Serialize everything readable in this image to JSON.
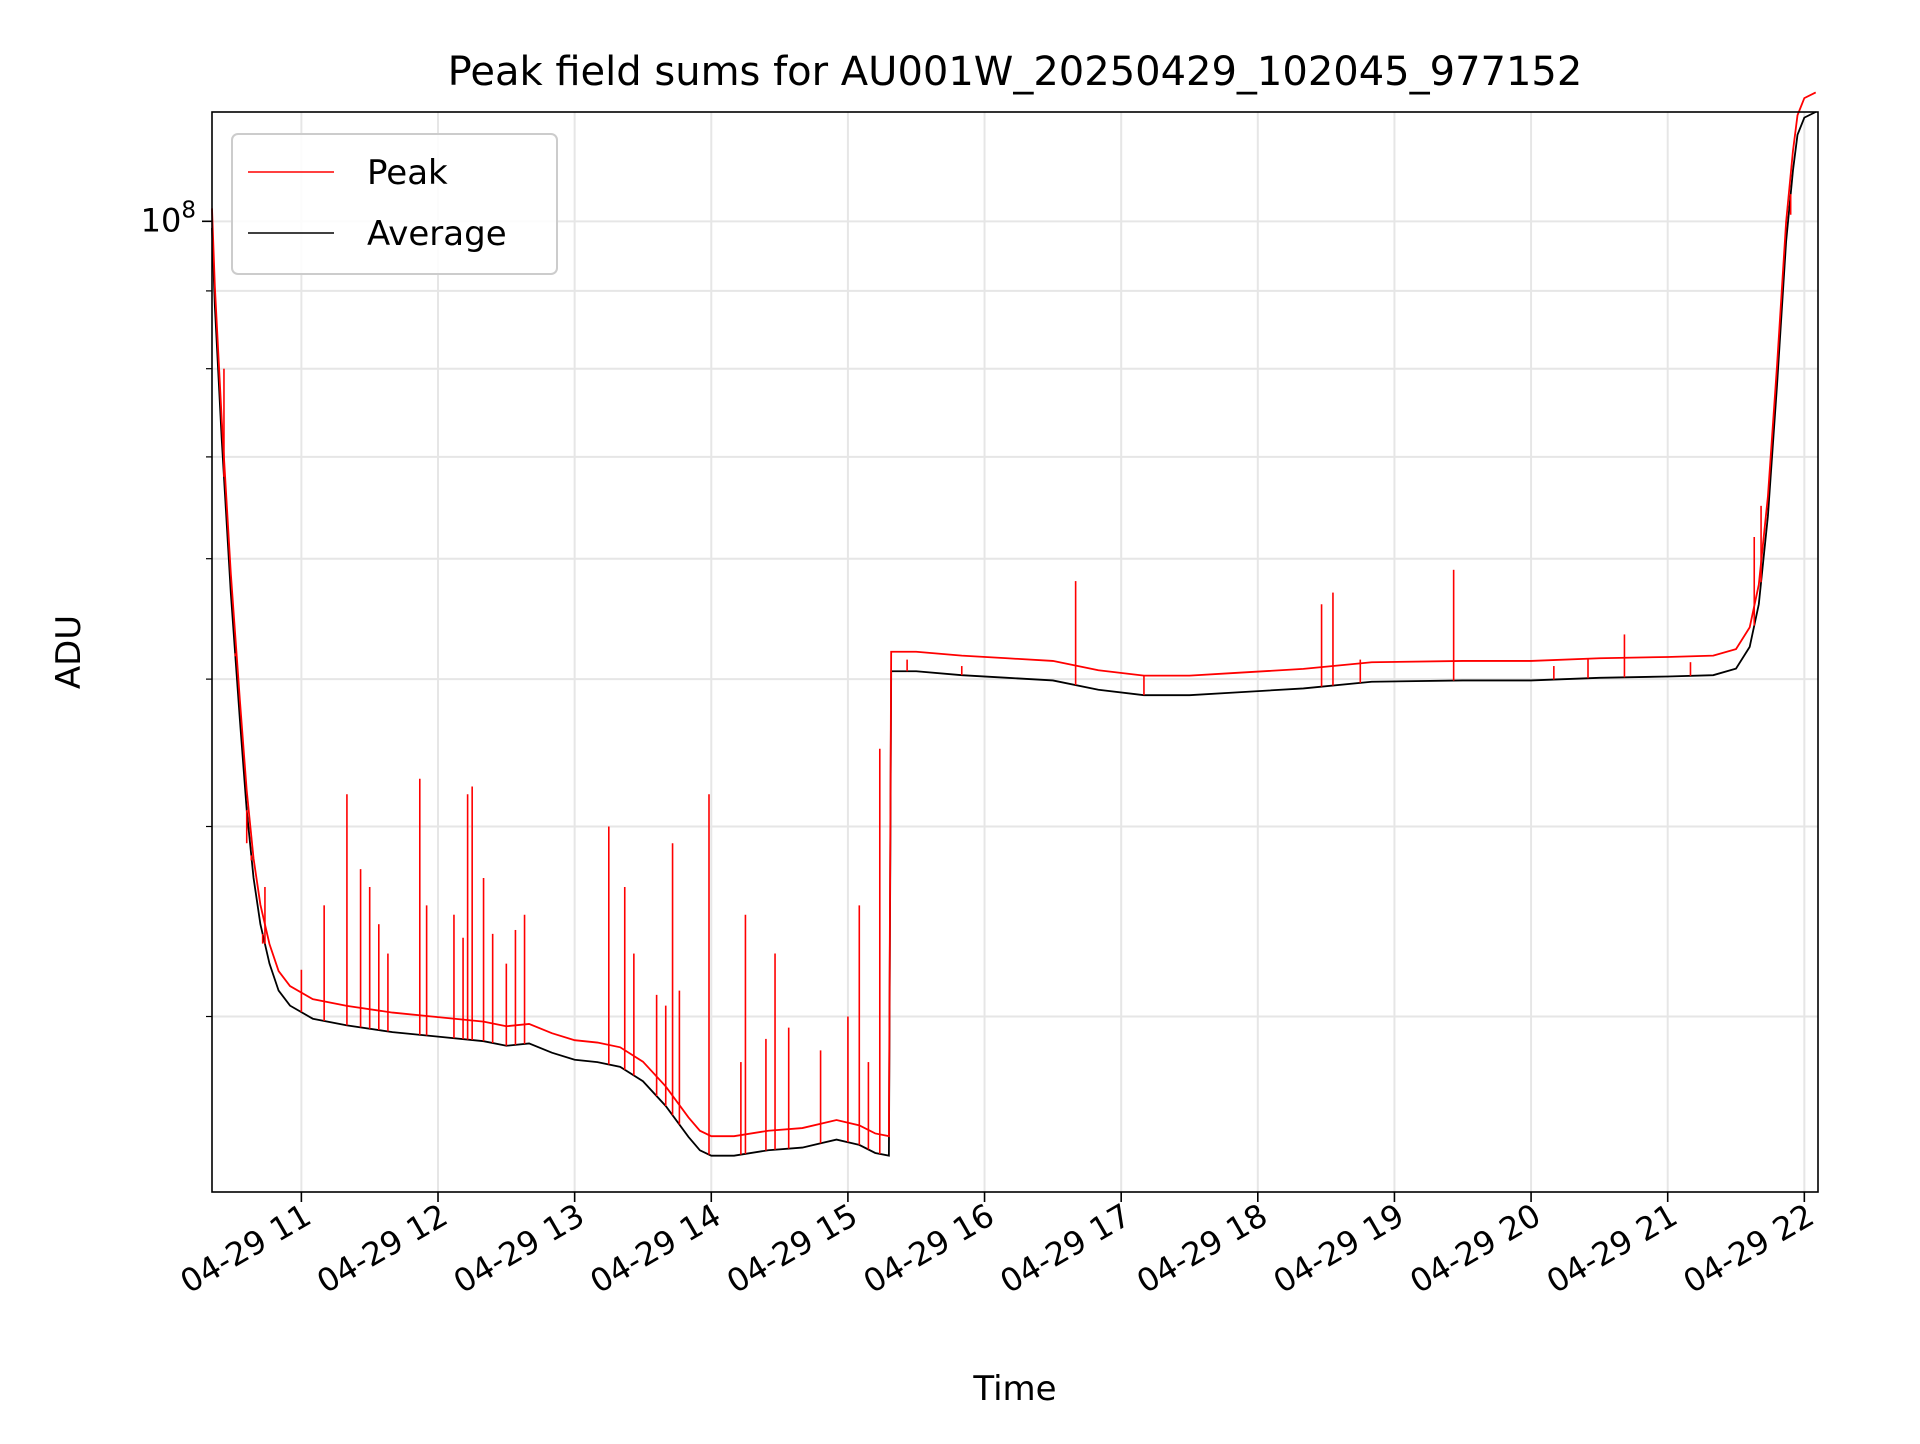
{
  "chart_data": {
    "type": "line",
    "title": "Peak field sums for AU001W_20250429_102045_977152",
    "xlabel": "Time",
    "ylabel": "ADU",
    "y_scale": "log",
    "ylim": [
      23000000,
      118000000
    ],
    "xlim": [
      "2025-04-29 10:20:45",
      "2025-04-29 22:06:00"
    ],
    "x_ticks": [
      {
        "t": "2025-04-29 11:00",
        "label": "04-29 11"
      },
      {
        "t": "2025-04-29 12:00",
        "label": "04-29 12"
      },
      {
        "t": "2025-04-29 13:00",
        "label": "04-29 13"
      },
      {
        "t": "2025-04-29 14:00",
        "label": "04-29 14"
      },
      {
        "t": "2025-04-29 15:00",
        "label": "04-29 15"
      },
      {
        "t": "2025-04-29 16:00",
        "label": "04-29 16"
      },
      {
        "t": "2025-04-29 17:00",
        "label": "04-29 17"
      },
      {
        "t": "2025-04-29 18:00",
        "label": "04-29 18"
      },
      {
        "t": "2025-04-29 19:00",
        "label": "04-29 19"
      },
      {
        "t": "2025-04-29 20:00",
        "label": "04-29 20"
      },
      {
        "t": "2025-04-29 21:00",
        "label": "04-29 21"
      },
      {
        "t": "2025-04-29 22:00",
        "label": "04-29 22"
      }
    ],
    "y_major_ticks": [
      {
        "value": 100000000,
        "label_base": "10",
        "label_exp": "8"
      }
    ],
    "y_minor_ticks": [
      30000000,
      40000000,
      50000000,
      60000000,
      70000000,
      80000000,
      90000000
    ],
    "grid": true,
    "legend": {
      "position": "top-left",
      "entries": [
        {
          "name": "Peak",
          "color": "#ff0000"
        },
        {
          "name": "Average",
          "color": "#000000"
        }
      ]
    },
    "series": [
      {
        "name": "Average",
        "color": "#000000",
        "points": [
          [
            "2025-04-29 10:20:45",
            99000000
          ],
          [
            "2025-04-29 10:22:00",
            88000000
          ],
          [
            "2025-04-29 10:25:00",
            72000000
          ],
          [
            "2025-04-29 10:29:00",
            57000000
          ],
          [
            "2025-04-29 10:33:00",
            47000000
          ],
          [
            "2025-04-29 10:36:00",
            41000000
          ],
          [
            "2025-04-29 10:39:00",
            37000000
          ],
          [
            "2025-04-29 10:42:00",
            34500000
          ],
          [
            "2025-04-29 10:46:00",
            32500000
          ],
          [
            "2025-04-29 10:50:00",
            31200000
          ],
          [
            "2025-04-29 10:55:00",
            30500000
          ],
          [
            "2025-04-29 11:05:00",
            29900000
          ],
          [
            "2025-04-29 11:20:00",
            29600000
          ],
          [
            "2025-04-29 11:40:00",
            29300000
          ],
          [
            "2025-04-29 12:00:00",
            29100000
          ],
          [
            "2025-04-29 12:20:00",
            28900000
          ],
          [
            "2025-04-29 12:30:00",
            28700000
          ],
          [
            "2025-04-29 12:40:00",
            28800000
          ],
          [
            "2025-04-29 12:50:00",
            28400000
          ],
          [
            "2025-04-29 13:00:00",
            28100000
          ],
          [
            "2025-04-29 13:10:00",
            28000000
          ],
          [
            "2025-04-29 13:20:00",
            27800000
          ],
          [
            "2025-04-29 13:30:00",
            27200000
          ],
          [
            "2025-04-29 13:40:00",
            26200000
          ],
          [
            "2025-04-29 13:50:00",
            25000000
          ],
          [
            "2025-04-29 13:55:00",
            24500000
          ],
          [
            "2025-04-29 14:00:00",
            24300000
          ],
          [
            "2025-04-29 14:10:00",
            24300000
          ],
          [
            "2025-04-29 14:25:00",
            24500000
          ],
          [
            "2025-04-29 14:40:00",
            24600000
          ],
          [
            "2025-04-29 14:55:00",
            24900000
          ],
          [
            "2025-04-29 15:05:00",
            24700000
          ],
          [
            "2025-04-29 15:12:00",
            24400000
          ],
          [
            "2025-04-29 15:18:00",
            24300000
          ],
          [
            "2025-04-29 15:19:00",
            50600000
          ],
          [
            "2025-04-29 15:30:00",
            50600000
          ],
          [
            "2025-04-29 15:50:00",
            50300000
          ],
          [
            "2025-04-29 16:10:00",
            50100000
          ],
          [
            "2025-04-29 16:30:00",
            49900000
          ],
          [
            "2025-04-29 16:50:00",
            49200000
          ],
          [
            "2025-04-29 17:10:00",
            48800000
          ],
          [
            "2025-04-29 17:30:00",
            48800000
          ],
          [
            "2025-04-29 17:50:00",
            49000000
          ],
          [
            "2025-04-29 18:20:00",
            49300000
          ],
          [
            "2025-04-29 18:50:00",
            49800000
          ],
          [
            "2025-04-29 19:30:00",
            49900000
          ],
          [
            "2025-04-29 20:00:00",
            49900000
          ],
          [
            "2025-04-29 20:30:00",
            50100000
          ],
          [
            "2025-04-29 21:00:00",
            50200000
          ],
          [
            "2025-04-29 21:20:00",
            50300000
          ],
          [
            "2025-04-29 21:30:00",
            50800000
          ],
          [
            "2025-04-29 21:36:00",
            52500000
          ],
          [
            "2025-04-29 21:40:00",
            56000000
          ],
          [
            "2025-04-29 21:44:00",
            64000000
          ],
          [
            "2025-04-29 21:48:00",
            78000000
          ],
          [
            "2025-04-29 21:52:00",
            97000000
          ],
          [
            "2025-04-29 21:55:00",
            108000000
          ],
          [
            "2025-04-29 21:57:00",
            114000000
          ],
          [
            "2025-04-29 22:00:00",
            117000000
          ],
          [
            "2025-04-29 22:05:00",
            118000000
          ]
        ]
      },
      {
        "name": "Peak",
        "color": "#ff0000",
        "baseline_offset": 1.03,
        "spikes": [
          [
            "2025-04-29 10:26:00",
            80000000
          ],
          [
            "2025-04-29 10:31:00",
            52000000
          ],
          [
            "2025-04-29 10:36:00",
            39000000
          ],
          [
            "2025-04-29 10:38:00",
            38000000
          ],
          [
            "2025-04-29 10:44:00",
            36500000
          ],
          [
            "2025-04-29 11:10:00",
            35500000
          ],
          [
            "2025-04-29 11:20:00",
            42000000
          ],
          [
            "2025-04-29 11:26:00",
            37500000
          ],
          [
            "2025-04-29 11:30:00",
            36500000
          ],
          [
            "2025-04-29 11:38:00",
            33000000
          ],
          [
            "2025-04-29 11:52:00",
            43000000
          ],
          [
            "2025-04-29 11:55:00",
            35500000
          ],
          [
            "2025-04-29 12:07:00",
            35000000
          ],
          [
            "2025-04-29 12:13:00",
            42000000
          ],
          [
            "2025-04-29 12:15:00",
            42500000
          ],
          [
            "2025-04-29 12:20:00",
            37000000
          ],
          [
            "2025-04-29 12:38:00",
            35000000
          ],
          [
            "2025-04-29 13:15:00",
            40000000
          ],
          [
            "2025-04-29 13:22:00",
            36500000
          ],
          [
            "2025-04-29 13:43:00",
            39000000
          ],
          [
            "2025-04-29 13:59:00",
            42000000
          ],
          [
            "2025-04-29 14:15:00",
            35000000
          ],
          [
            "2025-04-29 14:28:00",
            33000000
          ],
          [
            "2025-04-29 15:05:00",
            35500000
          ],
          [
            "2025-04-29 15:14:00",
            45000000
          ],
          [
            "2025-04-29 16:40:00",
            58000000
          ],
          [
            "2025-04-29 18:28:00",
            56000000
          ],
          [
            "2025-04-29 18:33:00",
            57000000
          ],
          [
            "2025-04-29 19:26:00",
            59000000
          ],
          [
            "2025-04-29 20:41:00",
            53500000
          ],
          [
            "2025-04-29 21:38:00",
            62000000
          ],
          [
            "2025-04-29 21:41:00",
            65000000
          ],
          [
            "2025-04-29 21:54:00",
            101000000
          ],
          [
            "2025-04-29 10:43:00",
            33500000
          ],
          [
            "2025-04-29 11:00:00",
            32200000
          ],
          [
            "2025-04-29 11:34:00",
            34500000
          ],
          [
            "2025-04-29 12:11:00",
            33800000
          ],
          [
            "2025-04-29 12:24:00",
            34000000
          ],
          [
            "2025-04-29 12:30:00",
            32500000
          ],
          [
            "2025-04-29 12:34:00",
            34200000
          ],
          [
            "2025-04-29 13:26:00",
            33000000
          ],
          [
            "2025-04-29 13:36:00",
            31000000
          ],
          [
            "2025-04-29 13:40:00",
            30500000
          ],
          [
            "2025-04-29 13:46:00",
            31200000
          ],
          [
            "2025-04-29 14:13:00",
            28000000
          ],
          [
            "2025-04-29 14:24:00",
            29000000
          ],
          [
            "2025-04-29 14:34:00",
            29500000
          ],
          [
            "2025-04-29 14:48:00",
            28500000
          ],
          [
            "2025-04-29 15:00:00",
            30000000
          ],
          [
            "2025-04-29 15:09:00",
            28000000
          ],
          [
            "2025-04-29 15:26:00",
            51500000
          ],
          [
            "2025-04-29 15:50:00",
            51000000
          ],
          [
            "2025-04-29 17:10:00",
            50300000
          ],
          [
            "2025-04-29 18:45:00",
            51500000
          ],
          [
            "2025-04-29 20:25:00",
            51600000
          ],
          [
            "2025-04-29 21:10:00",
            51300000
          ],
          [
            "2025-04-29 20:10:00",
            51000000
          ]
        ]
      }
    ]
  }
}
